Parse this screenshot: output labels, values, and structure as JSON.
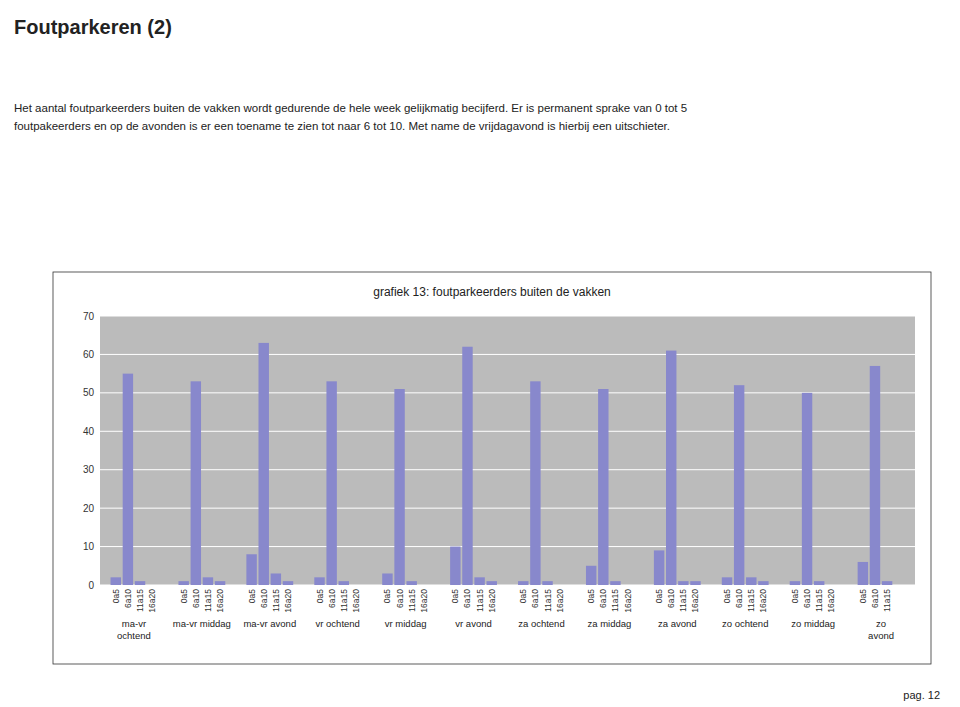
{
  "page_title": "Foutparkeren (2)",
  "page_text": [
    "Het aantal foutparkeerders buiten de vakken wordt gedurende de hele week gelijkmatig becijferd. Er is permanent sprake van 0 tot 5",
    "foutpakeerders en op de avonden is er een toename te zien tot naar 6 tot 10. Met name de vrijdagavond is hierbij een uitschieter."
  ],
  "page_num": "pag. 12",
  "chart_data": {
    "type": "bar",
    "title": "grafiek 13: foutparkeerders buiten de vakken",
    "categories": [
      "ma-vr\nochtend",
      "ma-vr middag",
      "ma-vr avond",
      "vr ochtend",
      "vr middag",
      "vr avond",
      "za ochtend",
      "za middag",
      "za avond",
      "zo ochtend",
      "zo middag",
      "zo\navond"
    ],
    "series": [
      {
        "name": "0a5",
        "values": [
          2,
          1,
          8,
          2,
          3,
          10,
          1,
          5,
          9,
          2,
          1,
          6
        ]
      },
      {
        "name": "6a10",
        "values": [
          55,
          53,
          63,
          53,
          51,
          62,
          53,
          51,
          61,
          52,
          50,
          57
        ]
      },
      {
        "name": "11a15",
        "values": [
          1,
          2,
          3,
          1,
          1,
          2,
          1,
          1,
          1,
          2,
          1,
          1
        ]
      },
      {
        "name": "16a20",
        "values": [
          0,
          1,
          1,
          0,
          0,
          1,
          0,
          0,
          1,
          1,
          0,
          null
        ]
      }
    ],
    "color": "#8888cc",
    "ylim": [
      0,
      70
    ],
    "yticks": [
      0,
      10,
      20,
      30,
      40,
      50,
      60,
      70
    ],
    "grid": true
  }
}
